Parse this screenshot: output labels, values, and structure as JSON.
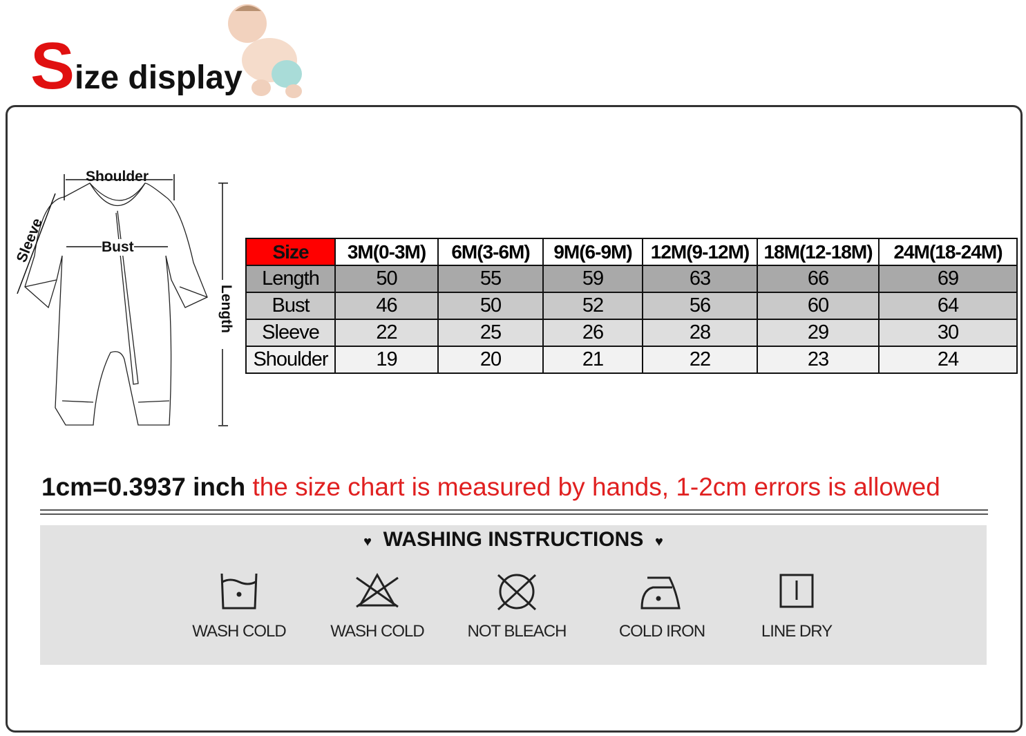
{
  "title": {
    "first_letter": "S",
    "rest": "ize display"
  },
  "diagram": {
    "shoulder": "Shoulder",
    "bust": "Bust",
    "sleeve": "Sleeve",
    "length": "Length"
  },
  "table": {
    "header": [
      "Size",
      "3M(0-3M)",
      "6M(3-6M)",
      "9M(6-9M)",
      "12M(9-12M)",
      "18M(12-18M)",
      "24M(18-24M)"
    ],
    "rows": [
      {
        "label": "Length",
        "values": [
          "50",
          "55",
          "59",
          "63",
          "66",
          "69"
        ]
      },
      {
        "label": "Bust",
        "values": [
          "46",
          "50",
          "52",
          "56",
          "60",
          "64"
        ]
      },
      {
        "label": "Sleeve",
        "values": [
          "22",
          "25",
          "26",
          "28",
          "29",
          "30"
        ]
      },
      {
        "label": "Shoulder",
        "values": [
          "19",
          "20",
          "21",
          "22",
          "23",
          "24"
        ]
      }
    ],
    "header_color": "#ff0000",
    "row_colors": [
      "#a9a9a9",
      "#c9c9c9",
      "#dedede",
      "#f2f2f2"
    ]
  },
  "note": {
    "conversion": "1cm=0.3937 inch",
    "disclaimer": "the size chart is measured by hands, 1-2cm errors is allowed"
  },
  "washing": {
    "title": "WASHING INSTRUCTIONS",
    "items": [
      {
        "icon": "wash-tub-icon",
        "label": "WASH COLD"
      },
      {
        "icon": "no-bleach-triangle-icon",
        "label": "WASH COLD"
      },
      {
        "icon": "no-tumble-dry-icon",
        "label": "NOT BLEACH"
      },
      {
        "icon": "iron-icon",
        "label": "COLD IRON"
      },
      {
        "icon": "line-dry-icon",
        "label": "LINE DRY"
      }
    ]
  }
}
